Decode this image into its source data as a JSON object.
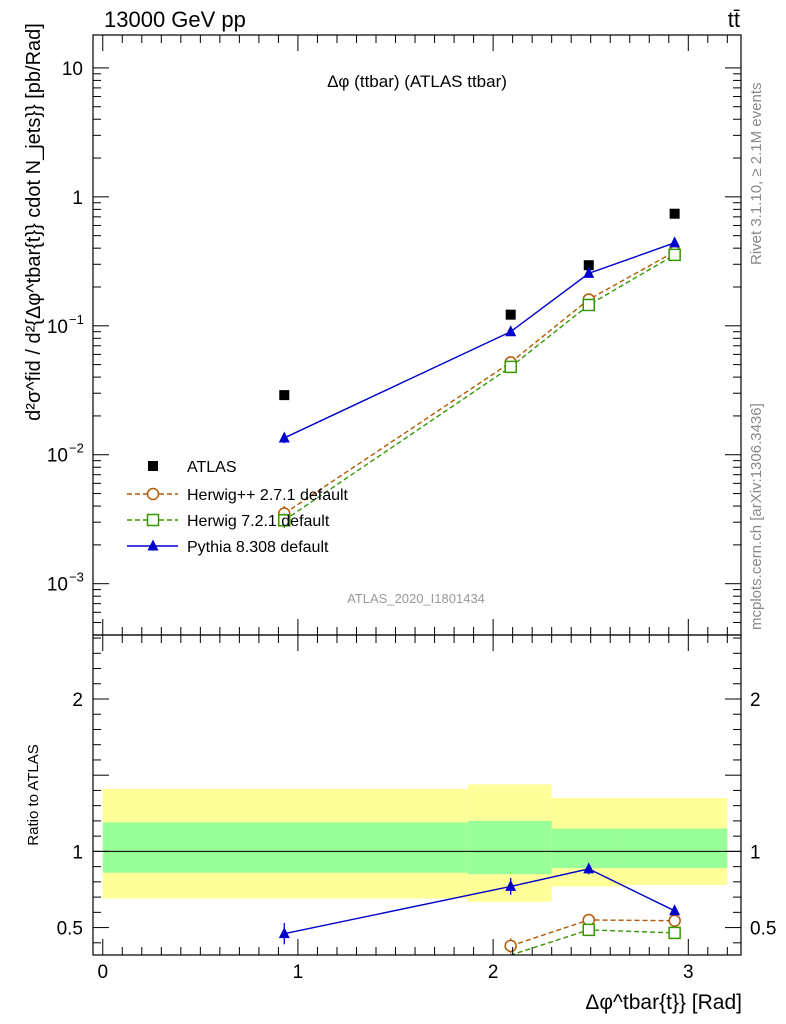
{
  "header": {
    "energy_label": "13000 GeV pp",
    "process_label": "tt̄",
    "plot_title": "Δφ (ttbar) (ATLAS ttbar)",
    "analysis_id": "ATLAS_2020_I1801434",
    "rivet_label": "Rivet 3.1.10, ≥ 2.1M events",
    "source_label": "mcplots.cern.ch [arXiv:1306.3436]"
  },
  "chart_data": [
    {
      "type": "scatter",
      "panel": "main",
      "ylabel": "d²σ^fid / d²{Δφ^tbar{t}} cdot N_jets}} [pb/Rad]",
      "yscale": "log",
      "ylim": [
        0.0004,
        18
      ],
      "xlim": [
        -0.05,
        3.27
      ],
      "y_tick_labels": [
        "10",
        "1",
        "10⁻¹",
        "10⁻²",
        "10⁻³"
      ],
      "legend_position": "bottom-left",
      "series": [
        {
          "name": "ATLAS",
          "color": "#000000",
          "marker": "square-filled",
          "line": "none",
          "x": [
            0.93,
            2.09,
            2.49,
            2.93
          ],
          "y": [
            0.029,
            0.122,
            0.295,
            0.74
          ]
        },
        {
          "name": "Herwig++ 2.7.1 default",
          "color": "#b35900",
          "marker": "circle-open",
          "line": "dashed",
          "x": [
            0.93,
            2.09,
            2.49,
            2.93
          ],
          "y": [
            0.0035,
            0.052,
            0.16,
            0.375
          ],
          "yerr": [
            0.0005,
            0.003,
            0.006,
            0.01
          ]
        },
        {
          "name": "Herwig 7.2.1 default",
          "color": "#339900",
          "marker": "square-open",
          "line": "dashed",
          "x": [
            0.93,
            2.09,
            2.49,
            2.93
          ],
          "y": [
            0.0031,
            0.048,
            0.145,
            0.355
          ],
          "yerr": [
            0.0004,
            0.003,
            0.006,
            0.01
          ]
        },
        {
          "name": "Pythia 8.308 default",
          "color": "#0000cc",
          "marker": "triangle-filled",
          "line": "solid",
          "x": [
            0.93,
            2.09,
            2.49,
            2.93
          ],
          "y": [
            0.0135,
            0.09,
            0.255,
            0.44
          ],
          "yerr": [
            0.0012,
            0.005,
            0.01,
            0.015
          ]
        }
      ]
    },
    {
      "type": "line",
      "panel": "ratio",
      "ylabel": "Ratio to ATLAS",
      "xlabel": "Δφ^tbar{t}} [Rad]",
      "ylim": [
        0.32,
        2.42
      ],
      "xlim": [
        -0.05,
        3.27
      ],
      "x_tick_labels": [
        "0",
        "1",
        "2",
        "3"
      ],
      "y_tick_labels": [
        "0.5",
        "1",
        "2"
      ],
      "bands": [
        {
          "name": "total uncertainty",
          "color": "#ffff99",
          "bins": [
            [
              0,
              1.87,
              0.69,
              1.41
            ],
            [
              1.87,
              2.3,
              0.67,
              1.44
            ],
            [
              2.3,
              2.65,
              0.77,
              1.35
            ],
            [
              2.65,
              3.2,
              0.78,
              1.35
            ]
          ]
        },
        {
          "name": "statistical uncertainty",
          "color": "#99ff99",
          "bins": [
            [
              0,
              1.87,
              0.86,
              1.19
            ],
            [
              1.87,
              2.3,
              0.85,
              1.2
            ],
            [
              2.3,
              2.65,
              0.89,
              1.15
            ],
            [
              2.65,
              3.2,
              0.89,
              1.15
            ]
          ]
        }
      ],
      "series": [
        {
          "name": "Herwig++ 2.7.1 default",
          "color": "#b35900",
          "marker": "circle-open",
          "line": "dashed",
          "x": [
            2.09,
            2.49,
            2.93
          ],
          "y": [
            0.38,
            0.55,
            0.545
          ],
          "yerr": [
            0.05,
            0.035,
            0.01
          ]
        },
        {
          "name": "Herwig 7.2.1 default",
          "color": "#339900",
          "marker": "square-open",
          "line": "dashed",
          "x": [
            1.97,
            2.49,
            2.93
          ],
          "y": [
            0.27,
            0.485,
            0.465
          ],
          "yerr": [
            0,
            0.03,
            0.01
          ]
        },
        {
          "name": "Pythia 8.308 default",
          "color": "#0000cc",
          "marker": "triangle-filled",
          "line": "solid",
          "x": [
            0.93,
            2.09,
            2.49,
            2.93
          ],
          "y": [
            0.46,
            0.77,
            0.885,
            0.61
          ],
          "yerr": [
            0.07,
            0.055,
            0.035,
            0.02
          ]
        }
      ]
    }
  ]
}
